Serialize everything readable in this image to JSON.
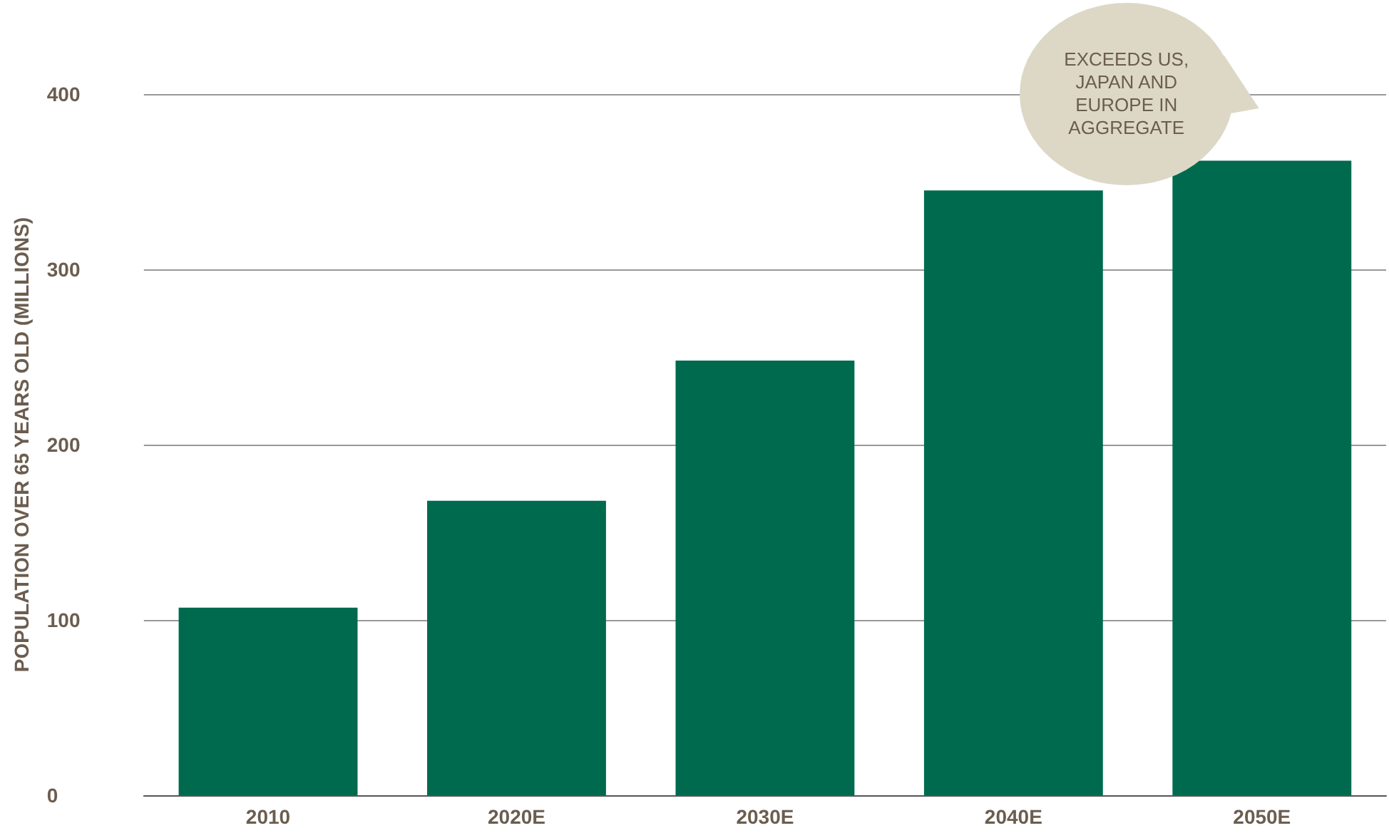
{
  "chart_data": {
    "type": "bar",
    "ylabel": "POPULATION OVER 65 YEARS OLD (MILLIONS)",
    "categories": [
      "2010",
      "2020E",
      "2030E",
      "2040E",
      "2050E"
    ],
    "values": [
      107,
      168,
      248,
      345,
      362
    ],
    "color": "#006a4e",
    "ylim": [
      0,
      400
    ],
    "yticks": [
      0,
      100,
      200,
      300,
      400
    ],
    "grid": "y",
    "annotations": [
      "EXCEEDS US, JAPAN AND EUROPE IN AGGREGATE"
    ]
  }
}
